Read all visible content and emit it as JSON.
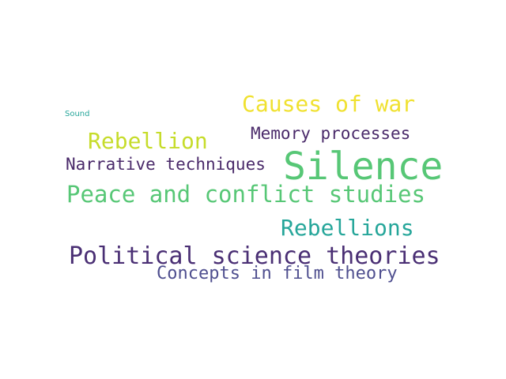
{
  "words": [
    {
      "text": "Causes of war",
      "color": "#f0e130"
    },
    {
      "text": "Sound",
      "color": "#26a69a"
    },
    {
      "text": "Memory processes",
      "color": "#4a2a6a"
    },
    {
      "text": "Rebellion",
      "color": "#c6dc2a"
    },
    {
      "text": "Narrative techniques",
      "color": "#4a2a6a"
    },
    {
      "text": "Silence",
      "color": "#57c776"
    },
    {
      "text": "Peace and conflict studies",
      "color": "#57c776"
    },
    {
      "text": "Rebellions",
      "color": "#26a69a"
    },
    {
      "text": "Political science theories",
      "color": "#4a2f74"
    },
    {
      "text": "Concepts in film theory",
      "color": "#4f4f8f"
    }
  ]
}
